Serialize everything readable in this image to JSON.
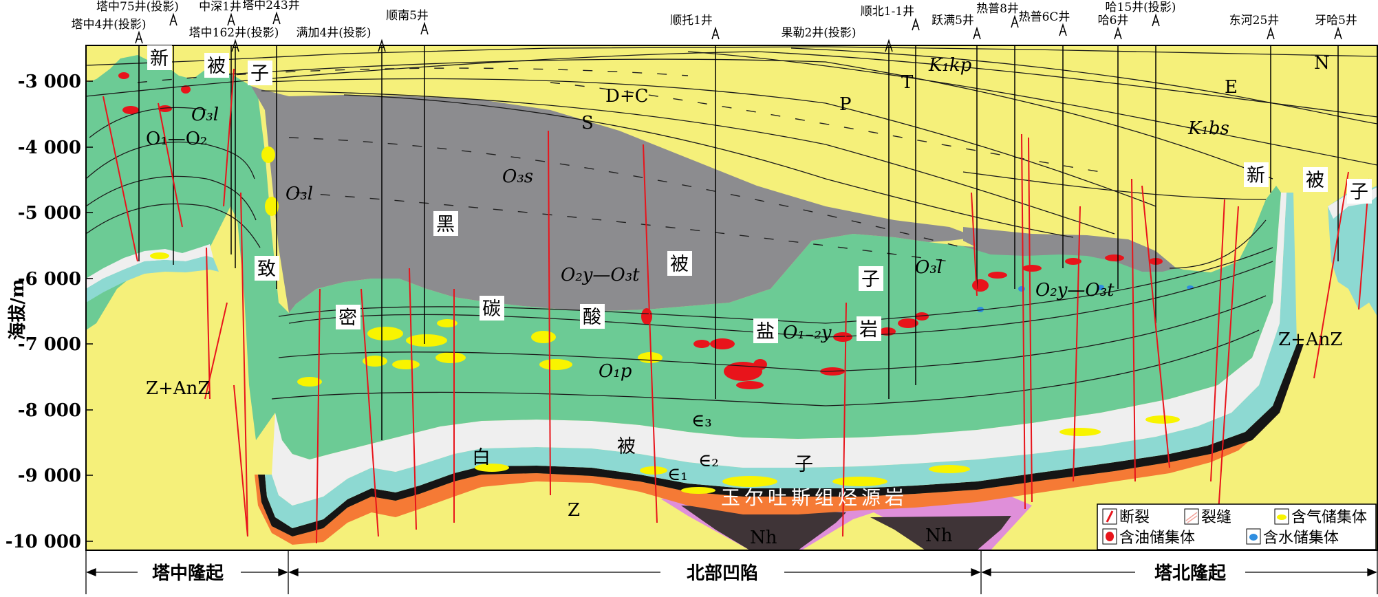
{
  "axis": {
    "ylabel": "海拔/m",
    "ticks": [
      "-3 000",
      "-4 000",
      "-5 000",
      "-6 000",
      "-7 000",
      "-8 000",
      "-9 000",
      "-10 000"
    ]
  },
  "wells": [
    {
      "label": "塔中4井(投影)"
    },
    {
      "label": "塔中75井(投影)"
    },
    {
      "label": "中深1井"
    },
    {
      "label": "塔中243井"
    },
    {
      "label": "塔中162井(投影)"
    },
    {
      "label": "满加4井(投影)"
    },
    {
      "label": "顺南5井"
    },
    {
      "label": "顺托1井"
    },
    {
      "label": "果勒2井(投影)"
    },
    {
      "label": "顺北1-1井"
    },
    {
      "label": "跃满5井"
    },
    {
      "label": "热普8井"
    },
    {
      "label": "热普6C井"
    },
    {
      "label": "哈6井"
    },
    {
      "label": "哈15井(投影)"
    },
    {
      "label": "东河25井"
    },
    {
      "label": "牙哈5井"
    }
  ],
  "formations": {
    "dc": "D+C",
    "s": "S",
    "p": "P",
    "t": "T",
    "n": "N",
    "e": "E",
    "o3s": "O₃s",
    "o3l_left": "O₃l",
    "o3l_mid": "O₃l",
    "o3l_right": "O₃l",
    "o1o2": "O₁—O₂",
    "o2y_mid": "O₂y—O₃t",
    "o2y_right": "O₂y—O₃t",
    "o12y": "O₁₋₂y",
    "o1p": "O₁p",
    "e3": "∈₃",
    "e2": "∈₂",
    "e1": "∈₁",
    "z": "Z",
    "zanz_left": "Z+AnZ",
    "zanz_right": "Z+AnZ",
    "nh_left": "Nh",
    "nh_right": "Nh",
    "k1kp": "K₁kp",
    "k1bs": "K₁bs",
    "source_rock": "玉尔吐斯组烃源岩"
  },
  "cover_labels": {
    "black": [
      "黑",
      "被",
      "子"
    ],
    "dense_carbonate": [
      "致",
      "密",
      "碳",
      "酸",
      "盐",
      "岩"
    ],
    "white": [
      "白",
      "被",
      "子"
    ],
    "new_left": [
      "新",
      "被",
      "子"
    ],
    "new_right": [
      "新",
      "被",
      "子"
    ]
  },
  "zones": [
    {
      "label": "塔中隆起"
    },
    {
      "label": "北部凹陷"
    },
    {
      "label": "塔北隆起"
    }
  ],
  "legend": [
    {
      "label": "断裂",
      "icon": "fault-symbol",
      "color": "#e8141b"
    },
    {
      "label": "裂缝",
      "icon": "fracture-symbol",
      "color": "#f3a39b"
    },
    {
      "label": "含气储集体",
      "icon": "gas-reservoir-symbol",
      "color": "#f8f400"
    },
    {
      "label": "含油储集体",
      "icon": "oil-reservoir-symbol",
      "color": "#e8141b"
    },
    {
      "label": "含水储集体",
      "icon": "water-reservoir-symbol",
      "color": "#2f8ee0"
    }
  ],
  "colors": {
    "cover_yellow": "#f5f07a",
    "black_cover_gray": "#8c8c8f",
    "carbonate_green": "#6ccb95",
    "white_cover": "#efefef",
    "cambrian_teal": "#8dd9d2",
    "source_orange": "#f57a35",
    "basement_magenta": "#df8fd9",
    "nh_dark": "#3f3437",
    "fault_red": "#e8141b"
  }
}
